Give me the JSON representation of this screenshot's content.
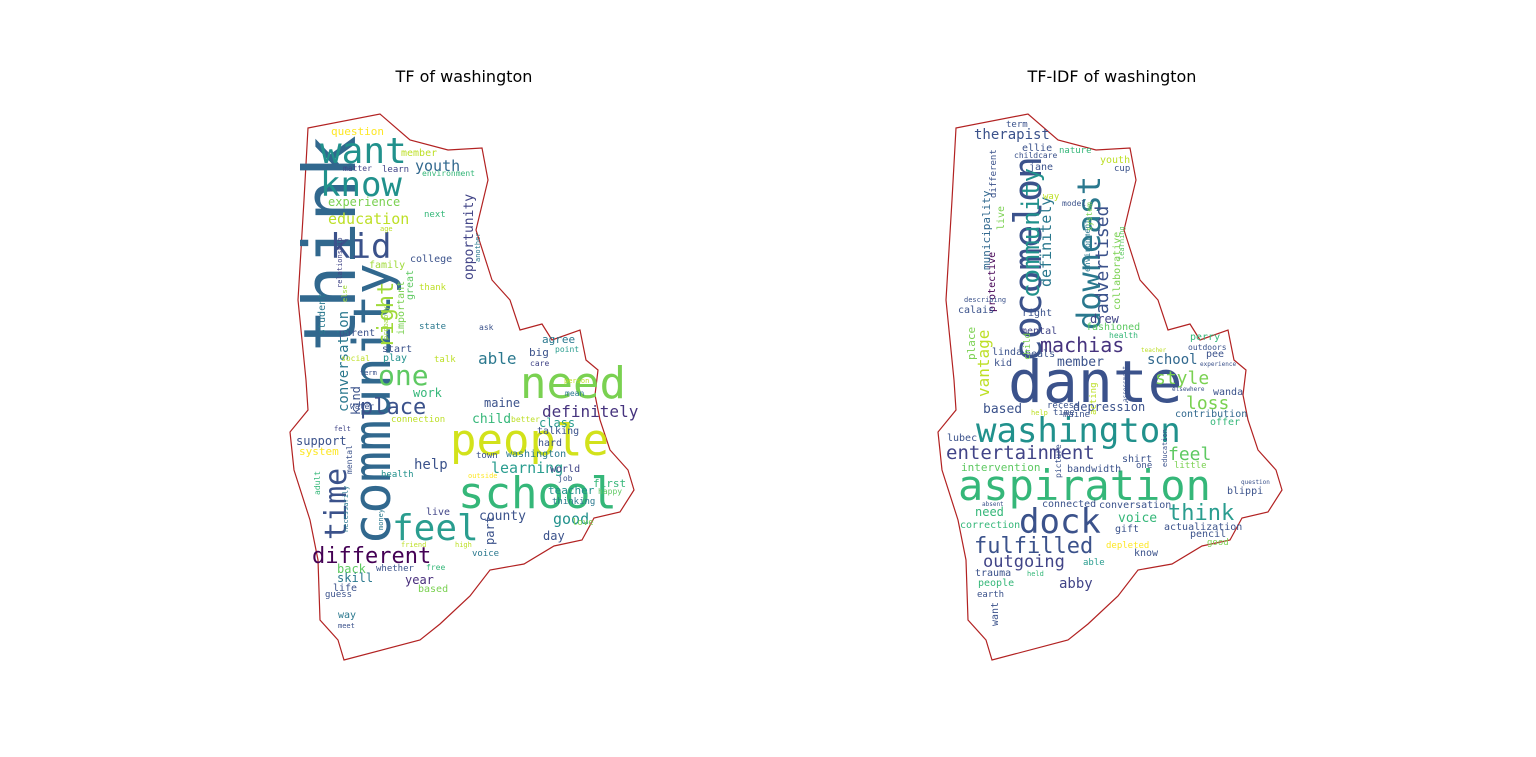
{
  "panels": [
    {
      "title": "TF of washington",
      "outline_color": "#b22222",
      "words": [
        {
          "t": "think",
          "c": "#31688e"
        },
        {
          "t": "community",
          "c": "#31688e"
        },
        {
          "t": "school",
          "c": "#35b779"
        },
        {
          "t": "people",
          "c": "#d2e21b"
        },
        {
          "t": "need",
          "c": "#7ad151"
        },
        {
          "t": "want",
          "c": "#21918c"
        },
        {
          "t": "know",
          "c": "#21918c"
        },
        {
          "t": "kid",
          "c": "#3b528b"
        },
        {
          "t": "feel",
          "c": "#2a9d8f"
        },
        {
          "t": "time",
          "c": "#3b528b"
        },
        {
          "t": "different",
          "c": "#440154"
        },
        {
          "t": "one",
          "c": "#5ec962"
        },
        {
          "t": "place",
          "c": "#3b528b"
        },
        {
          "t": "right",
          "c": "#a0da39"
        },
        {
          "t": "able",
          "c": "#2a788e"
        },
        {
          "t": "definitely",
          "c": "#46337e"
        },
        {
          "t": "youth",
          "c": "#31688e"
        },
        {
          "t": "education",
          "c": "#bddf26"
        },
        {
          "t": "learning",
          "c": "#2a9d8f"
        },
        {
          "t": "conversation",
          "c": "#2a788e"
        },
        {
          "t": "help",
          "c": "#3b528b"
        },
        {
          "t": "good",
          "c": "#21918c"
        },
        {
          "t": "opportunity",
          "c": "#414487"
        },
        {
          "t": "question",
          "c": "#fde725"
        },
        {
          "t": "experience",
          "c": "#7ad151"
        },
        {
          "t": "county",
          "c": "#3b528b"
        },
        {
          "t": "child",
          "c": "#35b779"
        },
        {
          "t": "support",
          "c": "#3b528b"
        },
        {
          "t": "year",
          "c": "#472d7b"
        },
        {
          "t": "kind",
          "c": "#3b528b"
        },
        {
          "t": "back",
          "c": "#5ec962"
        },
        {
          "t": "skill",
          "c": "#2a788e"
        },
        {
          "t": "work",
          "c": "#35b779"
        },
        {
          "t": "maine",
          "c": "#3b528b"
        },
        {
          "t": "class",
          "c": "#2a9d8f"
        },
        {
          "t": "agree",
          "c": "#2a788e"
        },
        {
          "t": "big",
          "c": "#3b528b"
        },
        {
          "t": "day",
          "c": "#3b528b"
        },
        {
          "t": "part",
          "c": "#3b528b"
        },
        {
          "t": "member",
          "c": "#bddf26"
        },
        {
          "t": "learn",
          "c": "#414487"
        },
        {
          "t": "matter",
          "c": "#414487"
        },
        {
          "t": "environment",
          "c": "#35b779"
        },
        {
          "t": "next",
          "c": "#35b779"
        },
        {
          "t": "college",
          "c": "#3b528b"
        },
        {
          "t": "family",
          "c": "#a0da39"
        },
        {
          "t": "thank",
          "c": "#bddf26"
        },
        {
          "t": "great",
          "c": "#5ec962"
        },
        {
          "t": "important",
          "c": "#7ad151"
        },
        {
          "t": "parent",
          "c": "#3b528b"
        },
        {
          "t": "start",
          "c": "#3b528b"
        },
        {
          "t": "play",
          "c": "#21918c"
        },
        {
          "t": "social",
          "c": "#bddf26"
        },
        {
          "t": "state",
          "c": "#2a788e"
        },
        {
          "t": "talk",
          "c": "#bddf26"
        },
        {
          "t": "ask",
          "c": "#3b528b"
        },
        {
          "t": "student",
          "c": "#2a788e"
        },
        {
          "t": "relationship",
          "c": "#414487"
        },
        {
          "t": "age",
          "c": "#bddf26"
        },
        {
          "t": "probably",
          "c": "#a0da39"
        },
        {
          "t": "else",
          "c": "#a0da39"
        },
        {
          "t": "another",
          "c": "#2a788e"
        },
        {
          "t": "point",
          "c": "#2a9d8f"
        },
        {
          "t": "care",
          "c": "#414487"
        },
        {
          "t": "person",
          "c": "#bddf26"
        },
        {
          "t": "mean",
          "c": "#2a788e"
        },
        {
          "t": "term",
          "c": "#3b528b"
        },
        {
          "t": "water",
          "c": "#3b528b"
        },
        {
          "t": "connection",
          "c": "#bddf26"
        },
        {
          "t": "better",
          "c": "#bddf26"
        },
        {
          "t": "talking",
          "c": "#3b528b"
        },
        {
          "t": "hard",
          "c": "#3b528b"
        },
        {
          "t": "town",
          "c": "#3b528b"
        },
        {
          "t": "washington",
          "c": "#2a788e"
        },
        {
          "t": "world",
          "c": "#414487"
        },
        {
          "t": "job",
          "c": "#3b528b"
        },
        {
          "t": "outside",
          "c": "#fde725"
        },
        {
          "t": "teacher",
          "c": "#21918c"
        },
        {
          "t": "first",
          "c": "#35b779"
        },
        {
          "t": "happy",
          "c": "#5ec962"
        },
        {
          "t": "thinking",
          "c": "#2a788e"
        },
        {
          "t": "love",
          "c": "#7ad151"
        },
        {
          "t": "felt",
          "c": "#414487"
        },
        {
          "t": "system",
          "c": "#fde725"
        },
        {
          "t": "mental",
          "c": "#3b528b"
        },
        {
          "t": "health",
          "c": "#21918c"
        },
        {
          "t": "adult",
          "c": "#35b779"
        },
        {
          "t": "necessarily",
          "c": "#2a788e"
        },
        {
          "t": "money",
          "c": "#2a788e"
        },
        {
          "t": "live",
          "c": "#414487"
        },
        {
          "t": "friend",
          "c": "#bddf26"
        },
        {
          "t": "high",
          "c": "#bddf26"
        },
        {
          "t": "voice",
          "c": "#2a788e"
        },
        {
          "t": "whether",
          "c": "#3b528b"
        },
        {
          "t": "free",
          "c": "#35b779"
        },
        {
          "t": "based",
          "c": "#7ad151"
        },
        {
          "t": "life",
          "c": "#3b528b"
        },
        {
          "t": "guess",
          "c": "#3b528b"
        },
        {
          "t": "way",
          "c": "#2a788e"
        },
        {
          "t": "meet",
          "c": "#3b528b"
        }
      ]
    },
    {
      "title": "TF-IDF of washington",
      "outline_color": "#b22222",
      "words": [
        {
          "t": "dante",
          "c": "#3b528b"
        },
        {
          "t": "aspiration",
          "c": "#35b779"
        },
        {
          "t": "washington",
          "c": "#21918c"
        },
        {
          "t": "cocomelon",
          "c": "#3b528b"
        },
        {
          "t": "downeast",
          "c": "#2a788e"
        },
        {
          "t": "dock",
          "c": "#3b528b"
        },
        {
          "t": "community",
          "c": "#21918c"
        },
        {
          "t": "fulfilled",
          "c": "#3b528b"
        },
        {
          "t": "entertainment",
          "c": "#414487"
        },
        {
          "t": "advertised",
          "c": "#3b528b"
        },
        {
          "t": "machias",
          "c": "#46337e"
        },
        {
          "t": "think",
          "c": "#2a9d8f"
        },
        {
          "t": "outgoing",
          "c": "#414487"
        },
        {
          "t": "style",
          "c": "#7ad151"
        },
        {
          "t": "loss",
          "c": "#7ad151"
        },
        {
          "t": "feel",
          "c": "#5ec962"
        },
        {
          "t": "vantage",
          "c": "#bddf26"
        },
        {
          "t": "definitely",
          "c": "#2a788e"
        },
        {
          "t": "therapist",
          "c": "#3b528b"
        },
        {
          "t": "school",
          "c": "#31688e"
        },
        {
          "t": "member",
          "c": "#3b528b"
        },
        {
          "t": "place",
          "c": "#7ad151"
        },
        {
          "t": "based",
          "c": "#3b528b"
        },
        {
          "t": "voice",
          "c": "#35b779"
        },
        {
          "t": "municipality",
          "c": "#31688e"
        },
        {
          "t": "collaborative",
          "c": "#7ad151"
        },
        {
          "t": "protective",
          "c": "#440154"
        },
        {
          "t": "depression",
          "c": "#3b528b"
        },
        {
          "t": "drew",
          "c": "#414487"
        },
        {
          "t": "abby",
          "c": "#414487"
        },
        {
          "t": "need",
          "c": "#35b779"
        },
        {
          "t": "intervention",
          "c": "#5ec962"
        },
        {
          "t": "bandwidth",
          "c": "#3b528b"
        },
        {
          "t": "correction",
          "c": "#35b779"
        },
        {
          "t": "actualization",
          "c": "#3b528b"
        },
        {
          "t": "contribution",
          "c": "#31688e"
        },
        {
          "t": "ellie",
          "c": "#3b528b"
        },
        {
          "t": "jane",
          "c": "#3b528b"
        },
        {
          "t": "youth",
          "c": "#bddf26"
        },
        {
          "t": "cup",
          "c": "#3b528b"
        },
        {
          "t": "nature",
          "c": "#35b779"
        },
        {
          "t": "childcare",
          "c": "#3b528b"
        },
        {
          "t": "term",
          "c": "#3b528b"
        },
        {
          "t": "different",
          "c": "#3b528b"
        },
        {
          "t": "live",
          "c": "#7ad151"
        },
        {
          "t": "way",
          "c": "#bddf26"
        },
        {
          "t": "model",
          "c": "#3b528b"
        },
        {
          "t": "environment",
          "c": "#2a788e"
        },
        {
          "t": "system",
          "c": "#7ad151"
        },
        {
          "t": "learning",
          "c": "#5ec962"
        },
        {
          "t": "right",
          "c": "#3b528b"
        },
        {
          "t": "calais",
          "c": "#3b528b"
        },
        {
          "t": "describing",
          "c": "#3b528b"
        },
        {
          "t": "beals",
          "c": "#3b528b"
        },
        {
          "t": "mental",
          "c": "#414487"
        },
        {
          "t": "fashioned",
          "c": "#5ec962"
        },
        {
          "t": "health",
          "c": "#35b779"
        },
        {
          "t": "linda",
          "c": "#3b528b"
        },
        {
          "t": "kid",
          "c": "#3b528b"
        },
        {
          "t": "child",
          "c": "#7ad151"
        },
        {
          "t": "perry",
          "c": "#35b779"
        },
        {
          "t": "outdoors",
          "c": "#3b528b"
        },
        {
          "t": "pee",
          "c": "#3b528b"
        },
        {
          "t": "wanda",
          "c": "#3b528b"
        },
        {
          "t": "elsewhere",
          "c": "#3b528b"
        },
        {
          "t": "experience",
          "c": "#3b528b"
        },
        {
          "t": "recess",
          "c": "#3b528b"
        },
        {
          "t": "time",
          "c": "#3b528b"
        },
        {
          "t": "help",
          "c": "#bddf26"
        },
        {
          "t": "maine",
          "c": "#3b528b"
        },
        {
          "t": "offer",
          "c": "#35b779"
        },
        {
          "t": "lubec",
          "c": "#3b528b"
        },
        {
          "t": "shirt",
          "c": "#3b528b"
        },
        {
          "t": "one",
          "c": "#3b528b"
        },
        {
          "t": "little",
          "c": "#7ad151"
        },
        {
          "t": "blippi",
          "c": "#3b528b"
        },
        {
          "t": "connected",
          "c": "#3b528b"
        },
        {
          "t": "conversation",
          "c": "#3b528b"
        },
        {
          "t": "gift",
          "c": "#3b528b"
        },
        {
          "t": "pencil",
          "c": "#3b528b"
        },
        {
          "t": "good",
          "c": "#7ad151"
        },
        {
          "t": "depleted",
          "c": "#fde725"
        },
        {
          "t": "know",
          "c": "#3b528b"
        },
        {
          "t": "able",
          "c": "#2a9d8f"
        },
        {
          "t": "trauma",
          "c": "#3b528b"
        },
        {
          "t": "held",
          "c": "#35b779"
        },
        {
          "t": "people",
          "c": "#35b779"
        },
        {
          "t": "earth",
          "c": "#3b528b"
        },
        {
          "t": "want",
          "c": "#3b528b"
        },
        {
          "t": "picture",
          "c": "#3b528b"
        },
        {
          "t": "education",
          "c": "#3b528b"
        },
        {
          "t": "absent",
          "c": "#3b528b"
        },
        {
          "t": "acting",
          "c": "#bddf26"
        },
        {
          "t": "question",
          "c": "#3b528b"
        },
        {
          "t": "teacher",
          "c": "#bddf26"
        },
        {
          "t": "assessment",
          "c": "#3b528b"
        }
      ]
    }
  ]
}
